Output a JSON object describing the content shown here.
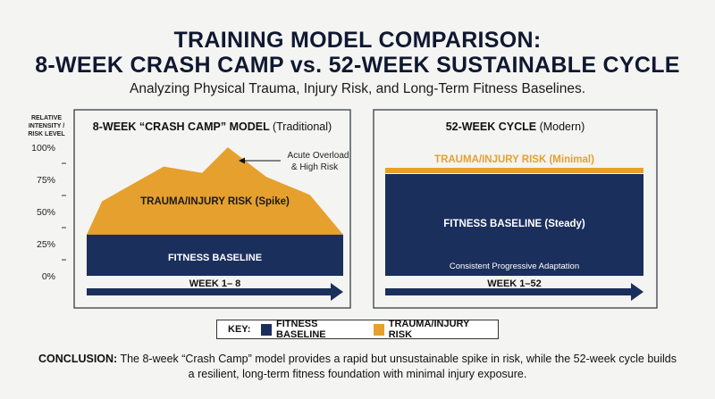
{
  "header": {
    "title_line1": "TRAINING MODEL COMPARISON:",
    "title_line2": "8-WEEK CRASH CAMP vs. 52-WEEK SUSTAINABLE CYCLE",
    "subtitle": "Analyzing Physical Trauma, Injury Risk, and Long-Term Fitness Baselines."
  },
  "colors": {
    "navy": "#1b2f5c",
    "orange": "#e6a02e",
    "frame": "#2a2f3a"
  },
  "chart_data": {
    "type": "area",
    "ylabel": "RELATIVE INTENSITY / RISK LEVEL",
    "ylim": [
      0,
      100
    ],
    "y_ticks": [
      "0%",
      "25%",
      "50%",
      "75%",
      "100%"
    ],
    "y_tick_values": [
      0,
      25,
      50,
      75,
      100
    ],
    "panels": [
      {
        "title_bold": "8-WEEK “CRASH CAMP” MODEL",
        "title_note": "(Traditional)",
        "x_label": "WEEK 1– 8",
        "series": [
          {
            "name": "FITNESS BASELINE",
            "color": "#1b2f5c",
            "label": "FITNESS BASELINE",
            "x": [
              0,
              1
            ],
            "values": [
              32,
              32
            ]
          },
          {
            "name": "TRAUMA/INJURY RISK",
            "color": "#e6a02e",
            "label": "TRAUMA/INJURY RISK (Spike)",
            "x": [
              0,
              0.06,
              0.3,
              0.45,
              0.55,
              0.7,
              0.87,
              1.0
            ],
            "values": [
              32,
              58,
              85,
              80,
              100,
              77,
              63,
              32
            ]
          }
        ],
        "annotation_line1": "Acute Overload",
        "annotation_line2": "& High Risk"
      },
      {
        "title_bold": "52-WEEK CYCLE",
        "title_note": "(Modern)",
        "x_label": "WEEK 1–52",
        "series": [
          {
            "name": "FITNESS BASELINE",
            "color": "#1b2f5c",
            "label": "FITNESS BASELINE (Steady)",
            "x": [
              0,
              1
            ],
            "values": [
              78,
              78
            ]
          },
          {
            "name": "TRAUMA/INJURY RISK",
            "color": "#e6a02e",
            "label": "TRAUMA/INJURY RISK (Minimal)",
            "x": [
              0,
              1
            ],
            "values": [
              80,
              80
            ]
          }
        ],
        "annotation": "Consistent Progressive Adaptation"
      }
    ],
    "legend_title": "KEY:",
    "legend": [
      "FITNESS BASELINE",
      "TRAUMA/INJURY RISK"
    ],
    "legend_placement": "bottom-center"
  },
  "conclusion": {
    "lead": "CONCLUSION:",
    "text": " The 8-week “Crash Camp” model provides a rapid but unsustainable spike in risk, while the 52-week cycle builds a resilient, long-term fitness foundation with minimal injury exposure."
  }
}
